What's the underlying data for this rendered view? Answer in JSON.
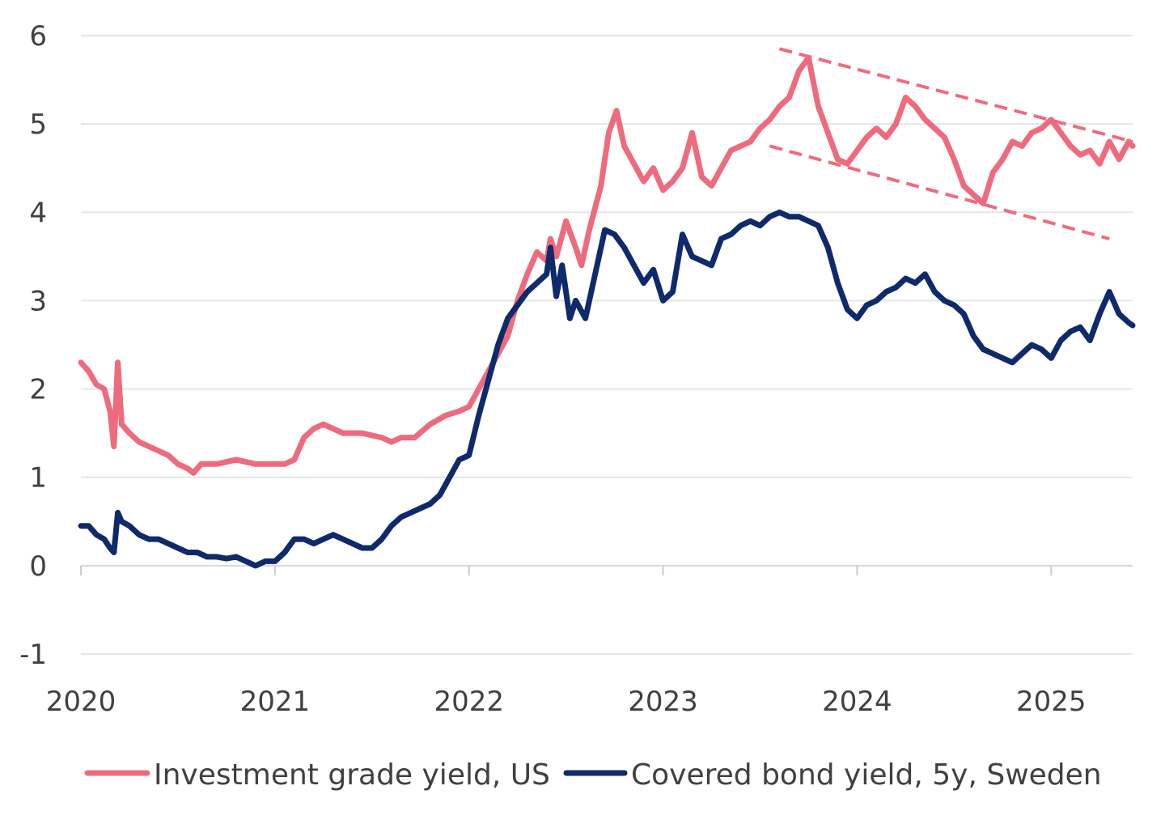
{
  "colors": {
    "series_pink": "#ee6b7e",
    "series_navy": "#0e2a6b",
    "grid": "#e3e6ea",
    "text": "#404040"
  },
  "chart_data": {
    "type": "line",
    "title": "",
    "xlabel": "",
    "ylabel": "",
    "ylim": [
      -1,
      6
    ],
    "yticks": [
      "6",
      "5",
      "4",
      "3",
      "2",
      "1",
      "0",
      "-1"
    ],
    "xlim": [
      2020.0,
      2025.42
    ],
    "xticks": [
      "2020",
      "2021",
      "2022",
      "2023",
      "2024",
      "2025"
    ],
    "grid": true,
    "legend_position": "bottom",
    "series": [
      {
        "name": "Investment grade yield, US",
        "color": "#ee6b7e",
        "x": [
          2020.0,
          2020.04,
          2020.08,
          2020.12,
          2020.15,
          2020.17,
          2020.19,
          2020.21,
          2020.25,
          2020.3,
          2020.35,
          2020.4,
          2020.45,
          2020.5,
          2020.55,
          2020.58,
          2020.62,
          2020.7,
          2020.8,
          2020.9,
          2021.0,
          2021.05,
          2021.1,
          2021.15,
          2021.2,
          2021.25,
          2021.35,
          2021.45,
          2021.55,
          2021.6,
          2021.65,
          2021.72,
          2021.8,
          2021.88,
          2021.95,
          2022.0,
          2022.05,
          2022.1,
          2022.15,
          2022.2,
          2022.25,
          2022.3,
          2022.35,
          2022.4,
          2022.42,
          2022.45,
          2022.5,
          2022.55,
          2022.58,
          2022.62,
          2022.68,
          2022.72,
          2022.76,
          2022.8,
          2022.85,
          2022.9,
          2022.95,
          2023.0,
          2023.05,
          2023.1,
          2023.15,
          2023.2,
          2023.25,
          2023.3,
          2023.35,
          2023.4,
          2023.45,
          2023.5,
          2023.55,
          2023.6,
          2023.65,
          2023.7,
          2023.75,
          2023.8,
          2023.85,
          2023.9,
          2023.95,
          2024.0,
          2024.05,
          2024.1,
          2024.15,
          2024.2,
          2024.25,
          2024.3,
          2024.35,
          2024.4,
          2024.45,
          2024.5,
          2024.55,
          2024.6,
          2024.65,
          2024.7,
          2024.75,
          2024.8,
          2024.85,
          2024.9,
          2024.95,
          2025.0,
          2025.05,
          2025.1,
          2025.15,
          2025.2,
          2025.25,
          2025.3,
          2025.35,
          2025.4,
          2025.42
        ],
        "y": [
          2.3,
          2.2,
          2.05,
          2.0,
          1.75,
          1.35,
          2.3,
          1.6,
          1.5,
          1.4,
          1.35,
          1.3,
          1.25,
          1.15,
          1.1,
          1.05,
          1.15,
          1.15,
          1.2,
          1.15,
          1.15,
          1.15,
          1.2,
          1.45,
          1.55,
          1.6,
          1.5,
          1.5,
          1.45,
          1.4,
          1.45,
          1.45,
          1.6,
          1.7,
          1.75,
          1.8,
          2.0,
          2.2,
          2.4,
          2.6,
          3.0,
          3.3,
          3.55,
          3.45,
          3.7,
          3.5,
          3.9,
          3.6,
          3.4,
          3.8,
          4.3,
          4.9,
          5.15,
          4.75,
          4.55,
          4.35,
          4.5,
          4.25,
          4.35,
          4.5,
          4.9,
          4.4,
          4.3,
          4.5,
          4.7,
          4.75,
          4.8,
          4.95,
          5.05,
          5.2,
          5.3,
          5.6,
          5.75,
          5.2,
          4.9,
          4.6,
          4.55,
          4.7,
          4.85,
          4.95,
          4.85,
          5.0,
          5.3,
          5.2,
          5.05,
          4.95,
          4.85,
          4.6,
          4.3,
          4.2,
          4.1,
          4.45,
          4.6,
          4.8,
          4.75,
          4.9,
          4.95,
          5.05,
          4.9,
          4.75,
          4.65,
          4.7,
          4.55,
          4.8,
          4.6,
          4.8,
          4.75
        ]
      },
      {
        "name": "Covered bond yield, 5y, Sweden",
        "color": "#0e2a6b",
        "x": [
          2020.0,
          2020.04,
          2020.08,
          2020.12,
          2020.15,
          2020.17,
          2020.19,
          2020.21,
          2020.25,
          2020.3,
          2020.35,
          2020.4,
          2020.45,
          2020.5,
          2020.55,
          2020.6,
          2020.65,
          2020.7,
          2020.75,
          2020.8,
          2020.85,
          2020.9,
          2020.95,
          2021.0,
          2021.05,
          2021.1,
          2021.15,
          2021.2,
          2021.25,
          2021.3,
          2021.35,
          2021.4,
          2021.45,
          2021.5,
          2021.55,
          2021.6,
          2021.65,
          2021.7,
          2021.75,
          2021.8,
          2021.85,
          2021.9,
          2021.95,
          2022.0,
          2022.05,
          2022.1,
          2022.15,
          2022.2,
          2022.25,
          2022.3,
          2022.35,
          2022.4,
          2022.42,
          2022.45,
          2022.48,
          2022.52,
          2022.55,
          2022.6,
          2022.65,
          2022.7,
          2022.75,
          2022.8,
          2022.85,
          2022.9,
          2022.95,
          2023.0,
          2023.05,
          2023.1,
          2023.15,
          2023.2,
          2023.25,
          2023.3,
          2023.35,
          2023.4,
          2023.45,
          2023.5,
          2023.55,
          2023.6,
          2023.65,
          2023.7,
          2023.75,
          2023.8,
          2023.85,
          2023.9,
          2023.95,
          2024.0,
          2024.05,
          2024.1,
          2024.15,
          2024.2,
          2024.25,
          2024.3,
          2024.35,
          2024.4,
          2024.45,
          2024.5,
          2024.55,
          2024.6,
          2024.65,
          2024.7,
          2024.75,
          2024.8,
          2024.85,
          2024.9,
          2024.95,
          2025.0,
          2025.05,
          2025.1,
          2025.15,
          2025.2,
          2025.25,
          2025.3,
          2025.35,
          2025.4,
          2025.42
        ],
        "y": [
          0.45,
          0.45,
          0.35,
          0.3,
          0.2,
          0.15,
          0.6,
          0.5,
          0.45,
          0.35,
          0.3,
          0.3,
          0.25,
          0.2,
          0.15,
          0.15,
          0.1,
          0.1,
          0.08,
          0.1,
          0.05,
          0.0,
          0.05,
          0.05,
          0.15,
          0.3,
          0.3,
          0.25,
          0.3,
          0.35,
          0.3,
          0.25,
          0.2,
          0.2,
          0.3,
          0.45,
          0.55,
          0.6,
          0.65,
          0.7,
          0.8,
          1.0,
          1.2,
          1.25,
          1.7,
          2.1,
          2.5,
          2.8,
          2.95,
          3.1,
          3.2,
          3.3,
          3.6,
          3.05,
          3.4,
          2.8,
          3.0,
          2.8,
          3.3,
          3.8,
          3.75,
          3.6,
          3.4,
          3.2,
          3.35,
          3.0,
          3.1,
          3.75,
          3.5,
          3.45,
          3.4,
          3.7,
          3.75,
          3.85,
          3.9,
          3.85,
          3.95,
          4.0,
          3.95,
          3.95,
          3.9,
          3.85,
          3.6,
          3.2,
          2.9,
          2.8,
          2.95,
          3.0,
          3.1,
          3.15,
          3.25,
          3.2,
          3.3,
          3.1,
          3.0,
          2.95,
          2.85,
          2.6,
          2.45,
          2.4,
          2.35,
          2.3,
          2.4,
          2.5,
          2.45,
          2.35,
          2.55,
          2.65,
          2.7,
          2.55,
          2.85,
          3.1,
          2.85,
          2.75,
          2.72
        ]
      }
    ],
    "annotations": [
      {
        "type": "dashed-trendline",
        "color": "#ee6b7e",
        "x": [
          2023.6,
          2025.42
        ],
        "y": [
          5.85,
          4.8
        ]
      },
      {
        "type": "dashed-trendline",
        "color": "#ee6b7e",
        "x": [
          2023.55,
          2025.3
        ],
        "y": [
          4.75,
          3.7
        ]
      }
    ]
  }
}
